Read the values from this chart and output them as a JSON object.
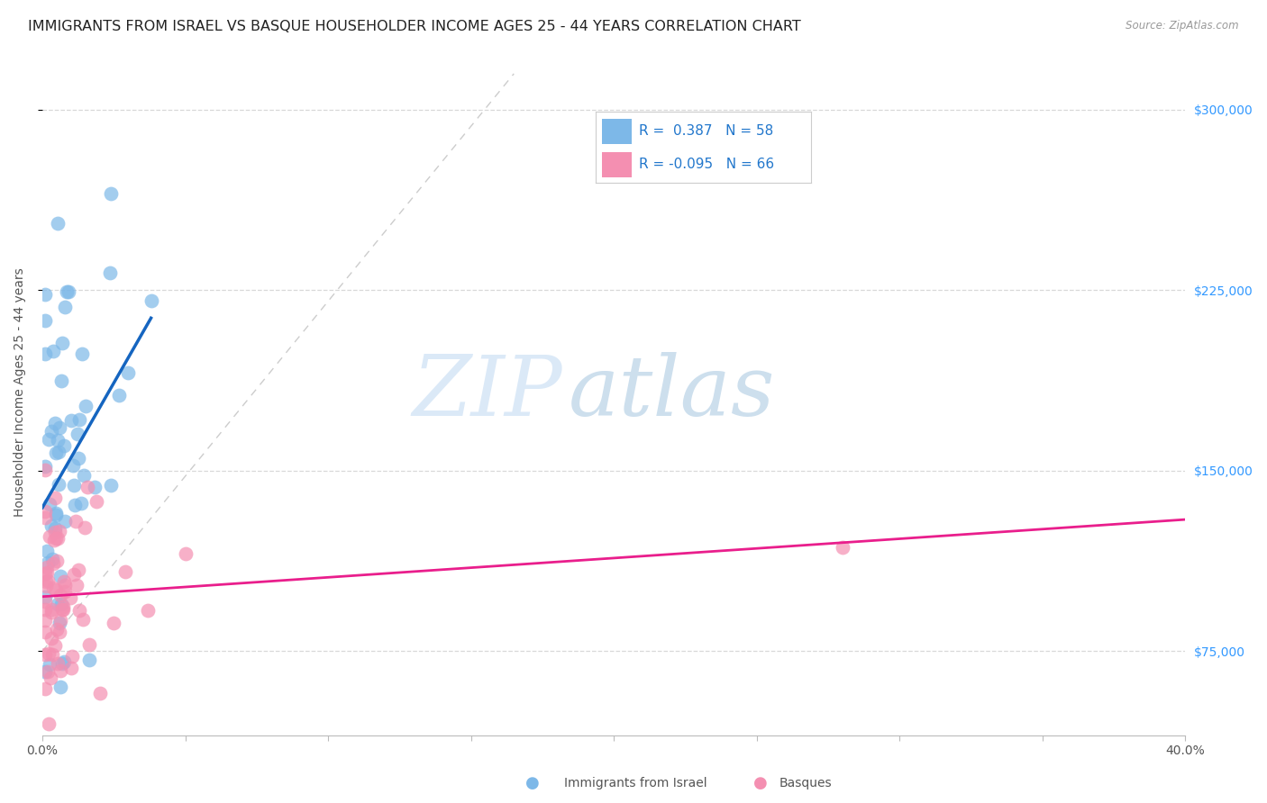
{
  "title": "IMMIGRANTS FROM ISRAEL VS BASQUE HOUSEHOLDER INCOME AGES 25 - 44 YEARS CORRELATION CHART",
  "source": "Source: ZipAtlas.com",
  "ylabel": "Householder Income Ages 25 - 44 years",
  "xmin": 0.0,
  "xmax": 0.4,
  "ymin": 40000,
  "ymax": 325000,
  "yticks": [
    75000,
    150000,
    225000,
    300000
  ],
  "xticks": [
    0.0,
    0.05,
    0.1,
    0.15,
    0.2,
    0.25,
    0.3,
    0.35,
    0.4
  ],
  "xtick_labels_show": [
    "0.0%",
    "40.0%"
  ],
  "ytick_labels": [
    "$75,000",
    "$150,000",
    "$225,000",
    "$300,000"
  ],
  "legend_r1": "R =  0.387",
  "legend_n1": "N = 58",
  "legend_r2": "R = -0.095",
  "legend_n2": "N = 66",
  "legend_label1": "Immigrants from Israel",
  "legend_label2": "Basques",
  "watermark_zip": "ZIP",
  "watermark_atlas": "atlas",
  "israel_color": "#7db8e8",
  "basque_color": "#f48fb1",
  "israel_line_color": "#1565c0",
  "basque_line_color": "#e91e8c",
  "ref_line_color": "#c0c0c0",
  "background_color": "#ffffff",
  "grid_color": "#d8d8d8",
  "title_fontsize": 11.5,
  "axis_label_fontsize": 10,
  "tick_fontsize": 10,
  "ytick_color": "#3399ff",
  "source_color": "#999999"
}
